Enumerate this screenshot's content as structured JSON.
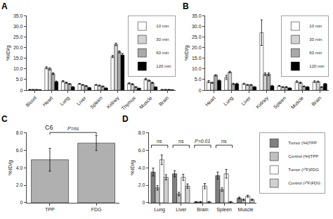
{
  "chart_data": [
    {
      "type": "bar",
      "title": "A",
      "ylabel": "%ID/g",
      "categories": [
        "Blood",
        "Heart",
        "Lung",
        "Liver",
        "Spleen",
        "Kidney",
        "Thymus",
        "Muscle",
        "Brain"
      ],
      "series": [
        {
          "name": "10 min",
          "color": "white",
          "values": [
            0.3,
            10.5,
            4.2,
            3.0,
            2.5,
            15.8,
            3.2,
            5.2,
            0.3
          ],
          "errors": [
            0.05,
            0.5,
            0.3,
            0.2,
            0.2,
            0.5,
            0.3,
            0.4,
            0.05
          ]
        },
        {
          "name": "30 min",
          "color": "lightgray",
          "values": [
            0.3,
            10.0,
            3.5,
            2.5,
            2.2,
            21.5,
            2.8,
            4.5,
            0.3
          ],
          "errors": [
            0.05,
            0.5,
            0.3,
            0.2,
            0.2,
            0.6,
            0.3,
            0.3,
            0.05
          ]
        },
        {
          "name": "60 min",
          "color": "darkgray",
          "values": [
            0.3,
            7.8,
            3.0,
            2.0,
            1.8,
            18.0,
            1.5,
            3.5,
            0.3
          ],
          "errors": [
            0.05,
            0.4,
            0.2,
            0.2,
            0.2,
            0.5,
            0.2,
            0.3,
            0.05
          ]
        },
        {
          "name": "120 min",
          "color": "black",
          "values": [
            0.2,
            4.0,
            1.5,
            1.2,
            1.0,
            16.5,
            0.9,
            1.5,
            0.2
          ],
          "errors": [
            0.05,
            0.3,
            0.2,
            0.1,
            0.1,
            0.7,
            0.1,
            0.1,
            0.05
          ]
        }
      ],
      "ylim": [
        0,
        35
      ],
      "yticks": [
        0,
        {
          "value": 5,
          "label": "5.0"
        },
        {
          "value": 10,
          "label": "10.0"
        },
        {
          "value": 15,
          "label": "15.0"
        },
        {
          "value": 20,
          "label": "20.0"
        },
        {
          "value": 25,
          "label": "25.0"
        },
        {
          "value": 30,
          "label": "30.0"
        },
        {
          "value": 35,
          "label": "35.0"
        }
      ],
      "grid": false,
      "legend": "upper right"
    },
    {
      "type": "bar",
      "title": "B",
      "ylabel": "%ID/g",
      "categories": [
        "Heart",
        "Lung",
        "Liver",
        "Kidney",
        "Spleen",
        "Muscle",
        "Brain"
      ],
      "series": [
        {
          "name": "10 min",
          "color": "white",
          "values": [
            4.0,
            6.0,
            3.0,
            27.0,
            2.0,
            4.0,
            4.0
          ],
          "errors": [
            0.5,
            1.0,
            0.3,
            6.0,
            0.2,
            0.4,
            0.4
          ]
        },
        {
          "name": "30 min",
          "color": "lightgray",
          "values": [
            3.5,
            8.5,
            2.5,
            7.5,
            1.5,
            3.5,
            4.0
          ],
          "errors": [
            0.3,
            0.4,
            0.2,
            0.6,
            0.2,
            0.3,
            0.3
          ]
        },
        {
          "name": "60 min",
          "color": "darkgray",
          "values": [
            7.0,
            3.0,
            2.5,
            7.5,
            1.5,
            1.8,
            1.5
          ],
          "errors": [
            0.3,
            0.3,
            0.2,
            0.6,
            0.2,
            0.2,
            0.2
          ]
        },
        {
          "name": "120 min",
          "color": "black",
          "values": [
            4.5,
            3.0,
            1.5,
            2.0,
            1.0,
            1.5,
            3.0
          ],
          "errors": [
            0.3,
            0.3,
            0.2,
            0.3,
            0.1,
            0.2,
            0.2
          ]
        }
      ],
      "ylim": [
        0,
        35
      ],
      "yticks": [
        0,
        {
          "value": 5,
          "label": "5.0"
        },
        {
          "value": 10,
          "label": "10.0"
        },
        {
          "value": 15,
          "label": "15.0"
        },
        {
          "value": 20,
          "label": "20.0"
        },
        {
          "value": 25,
          "label": "25.0"
        },
        {
          "value": 30,
          "label": "30.0"
        },
        {
          "value": 35,
          "label": "35.0"
        }
      ],
      "grid": false,
      "legend": "upper right"
    },
    {
      "type": "bar",
      "title": "C",
      "subtitle": "C6",
      "ylabel": "%ID/g",
      "categories": [
        "TPP",
        "FDG"
      ],
      "values": [
        4.9,
        6.8
      ],
      "errors": [
        1.3,
        0.85
      ],
      "color": "#b0b0b0",
      "ylim": [
        0,
        8.0
      ],
      "yticks": [
        0,
        {
          "value": 2.0,
          "label": "2.0"
        },
        {
          "value": 4.0,
          "label": "4.0"
        },
        {
          "value": 6.0,
          "label": "6.0"
        },
        {
          "value": 8.0,
          "label": "8.0"
        }
      ],
      "grid": false,
      "annotations": [
        "P=ns"
      ]
    },
    {
      "type": "bar",
      "title": "D",
      "ylabel": "%ID/g",
      "categories": [
        "Lung",
        "Liver",
        "Brain",
        "Spleen",
        "Muscle"
      ],
      "series": [
        {
          "name": "Tumor (³H)TPP",
          "color": "#808080",
          "values": [
            3.5,
            3.3,
            0.1,
            3.1,
            0.55
          ],
          "errors": [
            0.45,
            0.35,
            0.05,
            0.4,
            0.1
          ]
        },
        {
          "name": "Control (³H)TPP",
          "color": "#c0c0c0",
          "values": [
            1.7,
            1.0,
            0.1,
            1.5,
            0.35
          ],
          "errors": [
            0.25,
            0.2,
            0.05,
            0.2,
            0.08
          ]
        },
        {
          "name": "Tumor (¹⁸F)FDG",
          "color": "white",
          "values": [
            4.9,
            2.9,
            1.9,
            3.3,
            0.75
          ],
          "errors": [
            0.55,
            0.35,
            0.3,
            0.5,
            0.12
          ]
        },
        {
          "name": "Control (¹⁸F)FDG",
          "color": "#d0d0d0",
          "values": [
            2.9,
            1.9,
            0.1,
            0.1,
            0.35
          ],
          "errors": [
            0.3,
            0.25,
            0.05,
            0.05,
            0.08
          ]
        }
      ],
      "ylim": [
        0,
        8.0
      ],
      "yticks": [
        0,
        {
          "value": 2.0,
          "label": "2.0"
        },
        {
          "value": 4.0,
          "label": "4.0"
        },
        {
          "value": 6.0,
          "label": "6.0"
        },
        {
          "value": 8.0,
          "label": "8.0"
        }
      ],
      "grid": false,
      "legend": "right",
      "annotations": [
        "ns",
        "ns",
        "P=0.01",
        "ns"
      ]
    }
  ]
}
